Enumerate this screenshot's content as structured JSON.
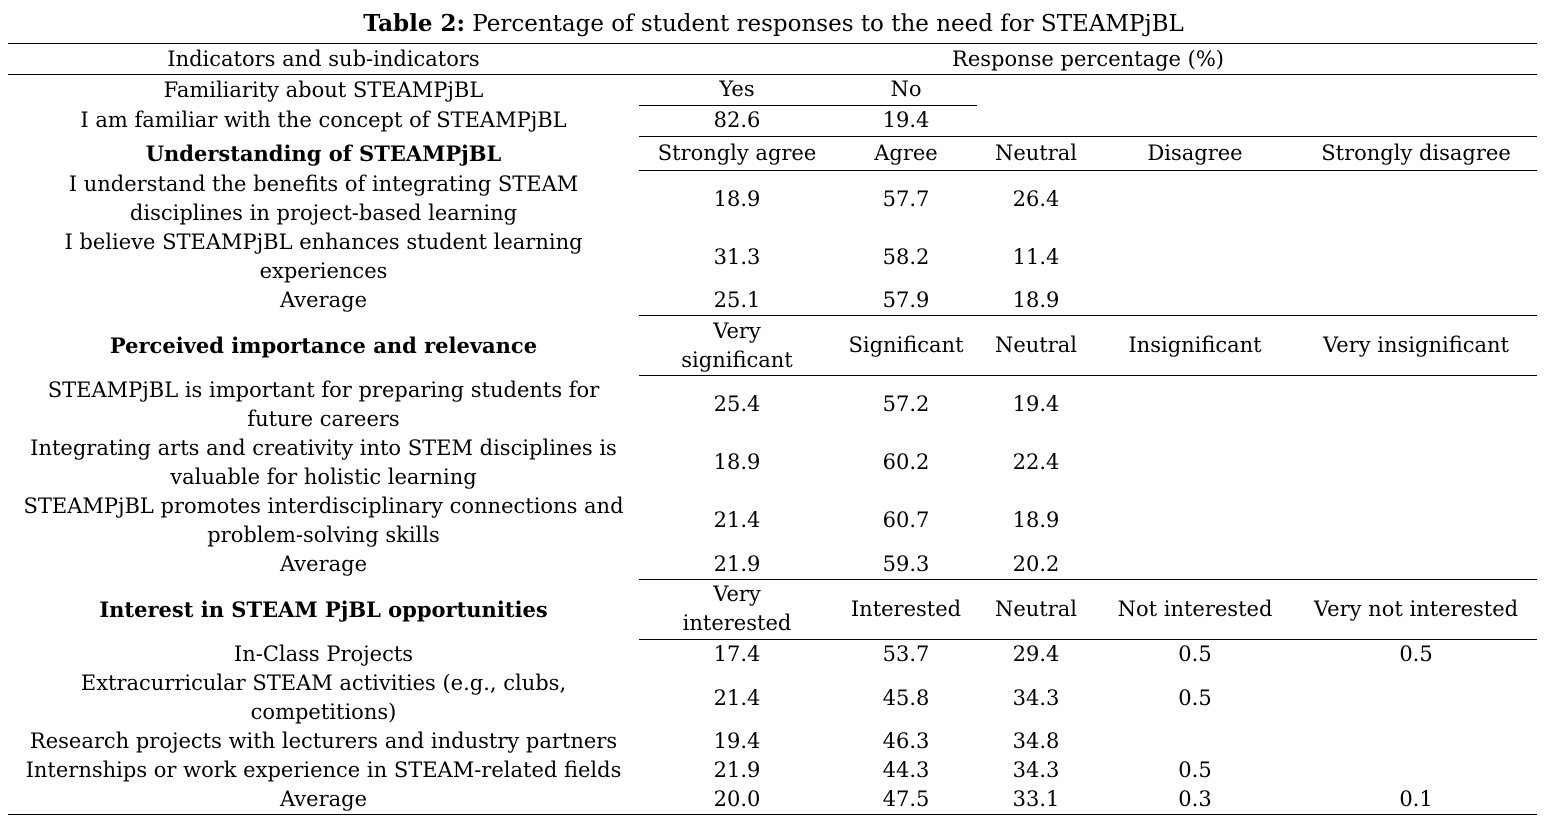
{
  "caption": {
    "label": "Table 2:",
    "text": " Percentage of student responses to the need for STEAMPjBL"
  },
  "header": {
    "indicators": "Indicators and sub-indicators",
    "response": "Response percentage (%)"
  },
  "familiarity": {
    "title": "Familiarity about STEAMPjBL",
    "yes": "Yes",
    "no": "No",
    "item": "I am familiar with the concept of STEAMPjBL",
    "yes_val": "82.6",
    "no_val": "19.4"
  },
  "understanding": {
    "title": "Understanding of STEAMPjBL",
    "scale": [
      "Strongly agree",
      "Agree",
      "Neutral",
      "Disagree",
      "Strongly disagree"
    ],
    "rows": [
      {
        "label_1": "I understand the benefits of integrating STEAM",
        "label_2": "disciplines in project-based learning",
        "v": [
          "18.9",
          "57.7",
          "26.4",
          "",
          ""
        ]
      },
      {
        "label_1": "I believe STEAMPjBL enhances student learning",
        "label_2": "experiences",
        "v": [
          "31.3",
          "58.2",
          "11.4",
          "",
          ""
        ]
      }
    ],
    "average": {
      "label": "Average",
      "v": [
        "25.1",
        "57.9",
        "18.9",
        "",
        ""
      ]
    }
  },
  "importance": {
    "title": "Perceived importance and relevance",
    "scale_1a": "Very",
    "scale_1b": "significant",
    "scale": [
      "Significant",
      "Neutral",
      "Insignificant",
      "Very insignificant"
    ],
    "rows": [
      {
        "label_1": "STEAMPjBL is important for preparing students for",
        "label_2": "future careers",
        "v": [
          "25.4",
          "57.2",
          "19.4",
          "",
          ""
        ]
      },
      {
        "label_1": "Integrating arts and creativity into STEM disciplines is",
        "label_2": "valuable for holistic learning",
        "v": [
          "18.9",
          "60.2",
          "22.4",
          "",
          ""
        ]
      },
      {
        "label_1": "STEAMPjBL promotes interdisciplinary connections and",
        "label_2": "problem-solving skills",
        "v": [
          "21.4",
          "60.7",
          "18.9",
          "",
          ""
        ]
      }
    ],
    "average": {
      "label": "Average",
      "v": [
        "21.9",
        "59.3",
        "20.2",
        "",
        ""
      ]
    }
  },
  "interest": {
    "title": "Interest in STEAM PjBL opportunities",
    "scale_1a": "Very",
    "scale_1b": "interested",
    "scale": [
      "Interested",
      "Neutral",
      "Not interested",
      "Very not interested"
    ],
    "row0": {
      "label": "In-Class Projects",
      "v": [
        "17.4",
        "53.7",
        "29.4",
        "0.5",
        "0.5"
      ]
    },
    "row1": {
      "label_1": "Extracurricular STEAM activities (e.g., clubs,",
      "label_2": "competitions)",
      "v": [
        "21.4",
        "45.8",
        "34.3",
        "0.5",
        ""
      ]
    },
    "row2": {
      "label": "Research projects with lecturers and industry partners",
      "v": [
        "19.4",
        "46.3",
        "34.8",
        "",
        ""
      ]
    },
    "row3": {
      "label": "Internships or work experience in STEAM-related fields",
      "v": [
        "21.9",
        "44.3",
        "34.3",
        "0.5",
        ""
      ]
    },
    "average": {
      "label": "Average",
      "v": [
        "20.0",
        "47.5",
        "33.1",
        "0.3",
        "0.1"
      ]
    }
  }
}
